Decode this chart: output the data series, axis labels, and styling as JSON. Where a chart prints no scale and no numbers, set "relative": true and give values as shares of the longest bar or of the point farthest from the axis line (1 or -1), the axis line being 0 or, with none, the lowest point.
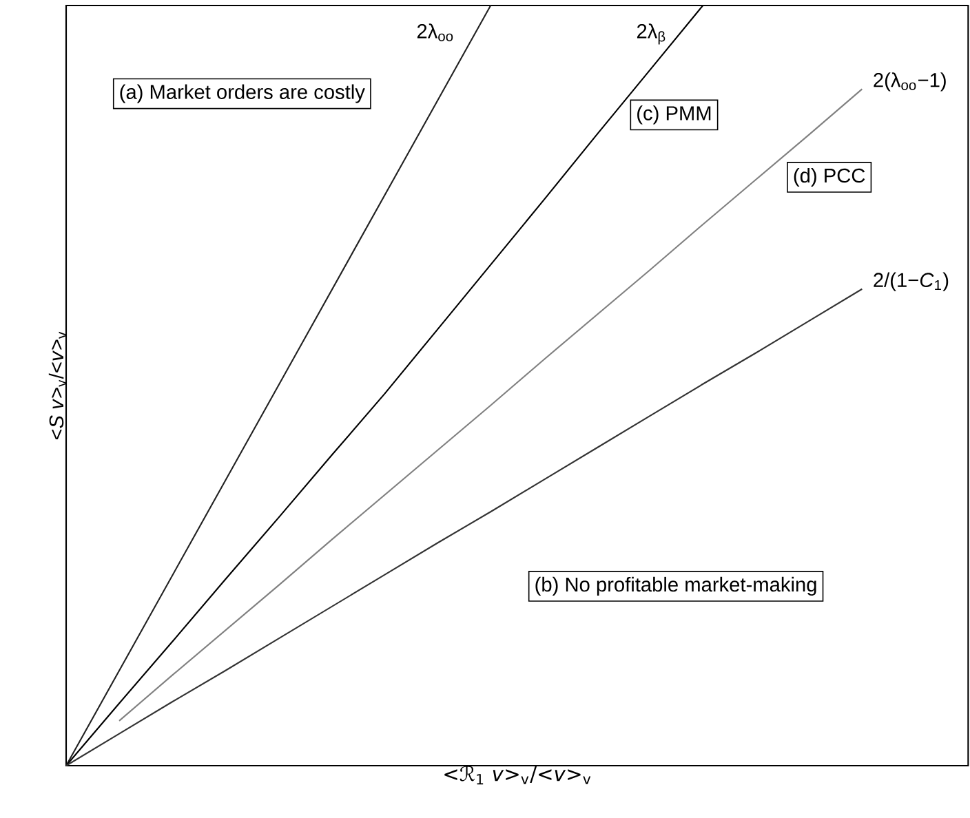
{
  "chart_data": {
    "type": "line",
    "relative": true,
    "xlabel": "<*ℛ*$_{1}$ *v*>$_{v}$/<*v*>$_{v}$",
    "ylabel": "<*S* *v*>$_{v}$/<*v*>$_{v}$",
    "categories": [
      null,
      null,
      null,
      null,
      null,
      null,
      null,
      null,
      null,
      null,
      null,
      null,
      null,
      null,
      null,
      null,
      null,
      null
    ],
    "series": [
      {
        "name": "2λ$_{oo}$",
        "color": "#222222",
        "values": [
          0,
          0.125,
          0.25,
          0.375,
          0.5,
          0.625,
          0.75,
          0.875,
          1.0,
          null,
          null,
          null,
          null,
          null,
          null,
          null,
          null,
          null
        ]
      },
      {
        "name": "2λ$_{β}$",
        "color": "#000000",
        "values": [
          0,
          0.082,
          0.163,
          0.245,
          0.326,
          0.408,
          0.489,
          0.574,
          0.659,
          0.744,
          0.83,
          0.915,
          1.0,
          null,
          null,
          null,
          null,
          null
        ]
      },
      {
        "name": "2(λ$_{oo}$−1)",
        "color": "#808080",
        "values": [
          null,
          0.059,
          0.119,
          0.178,
          0.237,
          0.297,
          0.356,
          0.415,
          0.474,
          0.534,
          0.593,
          0.652,
          0.712,
          0.771,
          0.83,
          0.89,
          null,
          null
        ]
      },
      {
        "name": "2/(1−*C*$_{1}$)",
        "color": "#333333",
        "values": [
          0,
          0.042,
          0.084,
          0.125,
          0.167,
          0.209,
          0.251,
          0.293,
          0.334,
          0.376,
          0.418,
          0.46,
          0.502,
          0.543,
          0.585,
          0.627,
          null,
          null
        ]
      }
    ],
    "annotations": [
      "(a) Market orders are costly",
      "(b) No profitable market-making",
      "(c) PMM",
      "(d) PCC"
    ]
  }
}
